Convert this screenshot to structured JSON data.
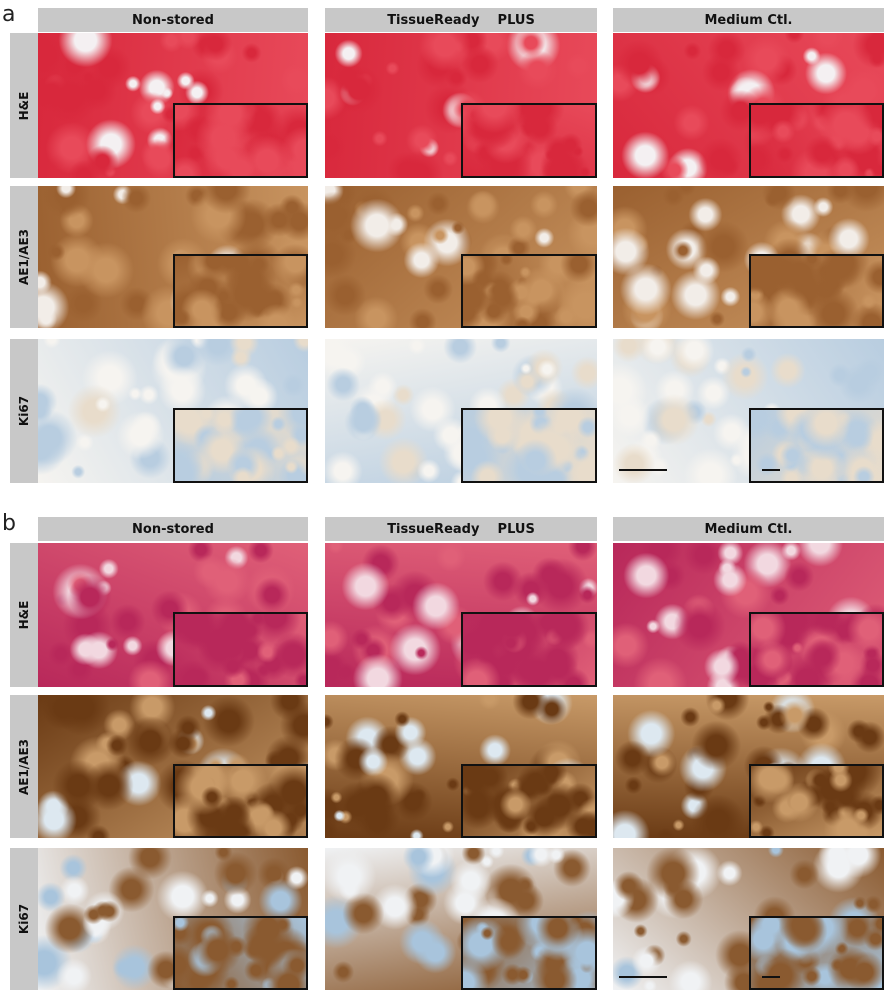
{
  "panels": [
    {
      "letter": "a",
      "columns": [
        "Non-stored",
        "TissueReady    PLUS",
        "Medium Ctl."
      ],
      "rows": [
        {
          "label": "H&E",
          "stain": "he",
          "colors": [
            "#d8283c",
            "#e84a5a",
            "#f4f0f2"
          ]
        },
        {
          "label": "AE1/AE3",
          "stain": "ae",
          "colors": [
            "#9a6030",
            "#c89460",
            "#f2ede8"
          ]
        },
        {
          "label": "Ki67",
          "stain": "ki",
          "colors": [
            "#b8cde0",
            "#e8dccb",
            "#f6f4f0"
          ]
        }
      ]
    },
    {
      "letter": "b",
      "columns": [
        "Non-stored",
        "TissueReady    PLUS",
        "Medium Ctl."
      ],
      "rows": [
        {
          "label": "H&E",
          "stain": "he",
          "colors": [
            "#b8285a",
            "#e06078",
            "#f2d8e0"
          ]
        },
        {
          "label": "AE1/AE3",
          "stain": "ae",
          "colors": [
            "#6a3a14",
            "#c89a68",
            "#dde8f0"
          ]
        },
        {
          "label": "Ki67",
          "stain": "ki",
          "colors": [
            "#8a5a30",
            "#a8c4dc",
            "#f0f2f4"
          ]
        }
      ]
    }
  ]
}
